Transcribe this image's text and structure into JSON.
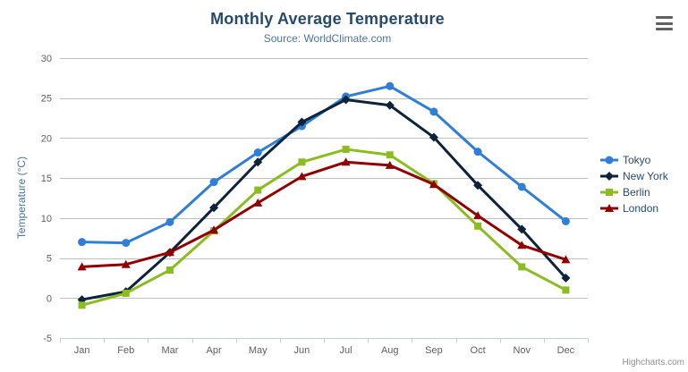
{
  "chart": {
    "title": "Monthly Average Temperature",
    "subtitle": "Source: WorldClimate.com",
    "credits": "Highcharts.com"
  },
  "chart_data": {
    "type": "line",
    "title": "Monthly Average Temperature",
    "subtitle": "Source: WorldClimate.com",
    "categories": [
      "Jan",
      "Feb",
      "Mar",
      "Apr",
      "May",
      "Jun",
      "Jul",
      "Aug",
      "Sep",
      "Oct",
      "Nov",
      "Dec"
    ],
    "series": [
      {
        "name": "Tokyo",
        "color": "#2f7ed8",
        "marker": "circle",
        "values": [
          7.0,
          6.9,
          9.5,
          14.5,
          18.2,
          21.5,
          25.2,
          26.5,
          23.3,
          18.3,
          13.9,
          9.6
        ]
      },
      {
        "name": "New York",
        "color": "#0d233a",
        "marker": "diamond",
        "values": [
          -0.2,
          0.8,
          5.7,
          11.3,
          17.0,
          22.0,
          24.8,
          24.1,
          20.1,
          14.1,
          8.6,
          2.5
        ]
      },
      {
        "name": "Berlin",
        "color": "#8bbc21",
        "marker": "square",
        "values": [
          -0.9,
          0.6,
          3.5,
          8.4,
          13.5,
          17.0,
          18.6,
          17.9,
          14.3,
          9.0,
          3.9,
          1.0
        ]
      },
      {
        "name": "London",
        "color": "#910000",
        "marker": "triangle",
        "values": [
          3.9,
          4.2,
          5.7,
          8.5,
          11.9,
          15.2,
          17.0,
          16.6,
          14.2,
          10.3,
          6.6,
          4.8
        ]
      }
    ],
    "xlabel": "",
    "ylabel": "Temperature (°C)",
    "ylim": [
      -5,
      30
    ],
    "yticks": [
      -5,
      0,
      5,
      10,
      15,
      20,
      25,
      30
    ],
    "grid": true,
    "legend_position": "right",
    "colors": {
      "grid": "#c0c0c0",
      "axis_line": "#c0d0e0",
      "tick_label": "#606060",
      "title": "#274b6d",
      "subtitle": "#4d759e",
      "legend_text": "#274b6d",
      "credits": "#909090"
    }
  }
}
